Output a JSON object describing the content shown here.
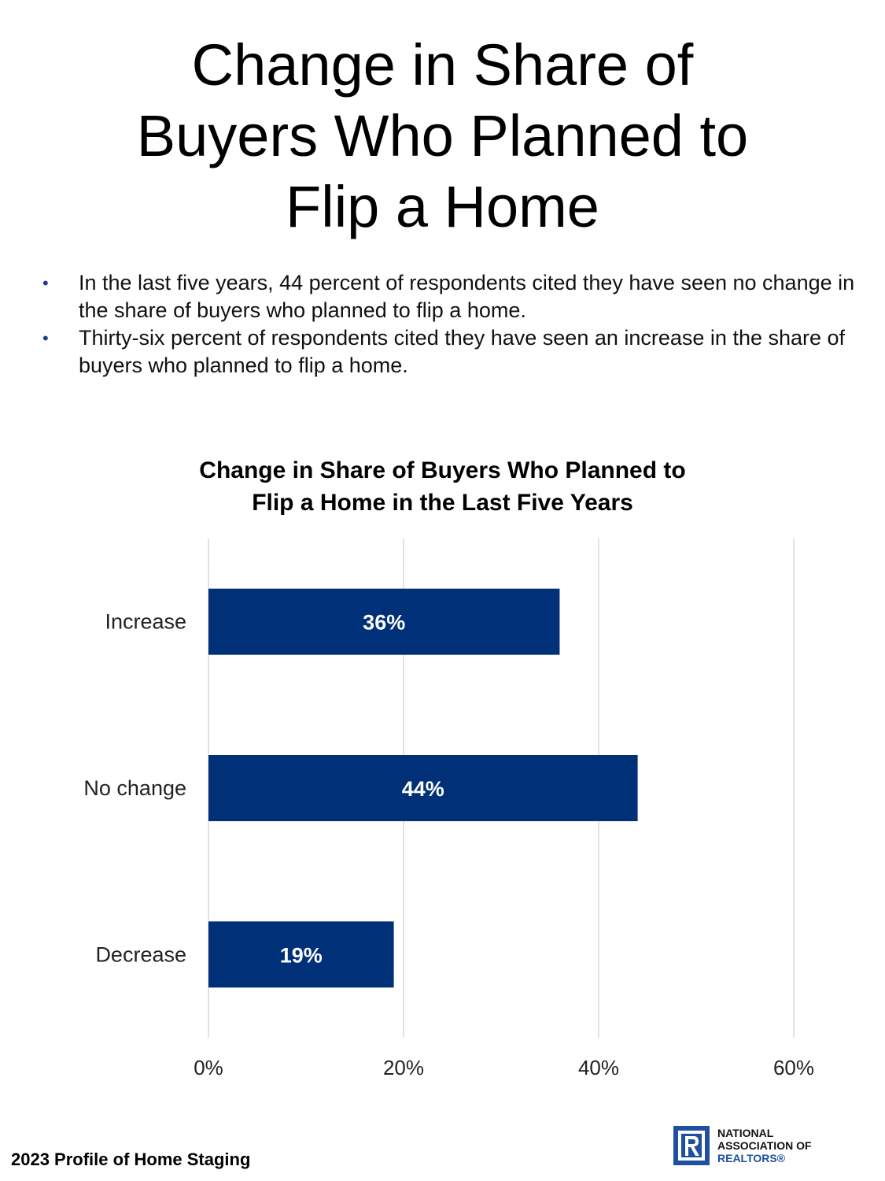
{
  "page": {
    "title_lines": [
      "Change in Share of",
      "Buyers Who Planned to",
      "Flip a Home"
    ],
    "bullets": [
      "In the last five years, 44 percent of respondents cited they have seen no change in the share of buyers who planned to flip a home.",
      "Thirty-six percent of respondents cited they have seen an increase in the share of buyers who planned to flip a home."
    ],
    "bullet_symbol": "•",
    "footer": "2023 Profile of Home Staging",
    "logo": {
      "lines": [
        "NATIONAL",
        "ASSOCIATION OF",
        "REALTORS®"
      ]
    }
  },
  "colors": {
    "bar": "#003078",
    "gridline": "#d9d9d9",
    "bullet": "#1f3f8f",
    "logo_blue": "#1f4fa0"
  },
  "chart_data": {
    "type": "bar",
    "orientation": "horizontal",
    "title_lines": [
      "Change in Share of Buyers Who Planned to",
      "Flip a Home in the Last Five Years"
    ],
    "categories": [
      "Increase",
      "No change",
      "Decrease"
    ],
    "values": [
      36,
      44,
      19
    ],
    "data_labels": [
      "36%",
      "44%",
      "19%"
    ],
    "xlim": [
      0,
      60
    ],
    "x_ticks": [
      0,
      20,
      40,
      60
    ],
    "x_tick_labels": [
      "0%",
      "20%",
      "40%",
      "60%"
    ],
    "grid": true,
    "legend": "none",
    "xlabel": "",
    "ylabel": ""
  }
}
